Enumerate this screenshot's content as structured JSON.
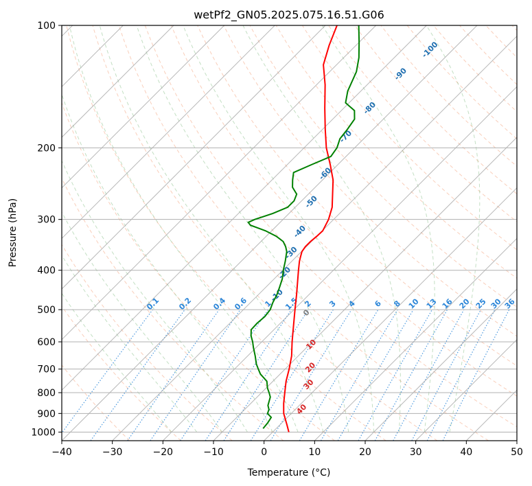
{
  "chart_data": {
    "type": "line",
    "title": "wetPf2_GN05.2025.075.16.51.G06",
    "xlabel": "Temperature (°C)",
    "ylabel": "Pressure (hPa)",
    "xlim": [
      -40,
      50
    ],
    "ylim": [
      1050,
      100
    ],
    "y_scale": "log",
    "skew": true,
    "x_ticks": [
      "−40",
      "−30",
      "−20",
      "−10",
      "0",
      "10",
      "20",
      "30",
      "40",
      "50"
    ],
    "y_ticks": [
      "100",
      "200",
      "300",
      "400",
      "500",
      "600",
      "700",
      "800",
      "900",
      "1000"
    ],
    "grid": true,
    "series": [
      {
        "color": "#ff0000",
        "points": [
          [
            1000,
            3.2
          ],
          [
            960,
            1.4
          ],
          [
            900,
            -1.5
          ],
          [
            850,
            -3.5
          ],
          [
            800,
            -5.4
          ],
          [
            750,
            -7.4
          ],
          [
            700,
            -9.2
          ],
          [
            650,
            -11.3
          ],
          [
            600,
            -14.0
          ],
          [
            560,
            -16.2
          ],
          [
            500,
            -19.8
          ],
          [
            460,
            -22.4
          ],
          [
            400,
            -26.9
          ],
          [
            380,
            -28.5
          ],
          [
            370,
            -29.2
          ],
          [
            360,
            -29.9
          ],
          [
            350,
            -30.2
          ],
          [
            340,
            -30.2
          ],
          [
            330,
            -30.0
          ],
          [
            320,
            -29.9
          ],
          [
            300,
            -31.0
          ],
          [
            280,
            -32.7
          ],
          [
            260,
            -35.2
          ],
          [
            240,
            -37.9
          ],
          [
            220,
            -41.5
          ],
          [
            200,
            -45.6
          ],
          [
            180,
            -49.5
          ],
          [
            160,
            -53.7
          ],
          [
            140,
            -58.3
          ],
          [
            125,
            -62.6
          ],
          [
            112,
            -65.3
          ],
          [
            100,
            -67.7
          ]
        ]
      },
      {
        "color": "#008000",
        "points": [
          [
            980,
            -2.6
          ],
          [
            950,
            -2.8
          ],
          [
            920,
            -3.2
          ],
          [
            900,
            -4.7
          ],
          [
            880,
            -5.2
          ],
          [
            860,
            -6.2
          ],
          [
            820,
            -7.4
          ],
          [
            800,
            -8.5
          ],
          [
            780,
            -9.7
          ],
          [
            750,
            -11.2
          ],
          [
            720,
            -13.9
          ],
          [
            700,
            -15.3
          ],
          [
            680,
            -16.7
          ],
          [
            650,
            -18.5
          ],
          [
            620,
            -20.5
          ],
          [
            600,
            -21.8
          ],
          [
            580,
            -23.3
          ],
          [
            560,
            -24.5
          ],
          [
            540,
            -24.6
          ],
          [
            520,
            -24.4
          ],
          [
            500,
            -24.7
          ],
          [
            480,
            -25.6
          ],
          [
            460,
            -26.3
          ],
          [
            440,
            -27.3
          ],
          [
            420,
            -28.4
          ],
          [
            400,
            -29.9
          ],
          [
            380,
            -31.3
          ],
          [
            360,
            -32.9
          ],
          [
            350,
            -34.1
          ],
          [
            340,
            -35.6
          ],
          [
            330,
            -38.0
          ],
          [
            320,
            -41.2
          ],
          [
            310,
            -45.3
          ],
          [
            305,
            -46.3
          ],
          [
            300,
            -45.6
          ],
          [
            290,
            -43.2
          ],
          [
            280,
            -41.5
          ],
          [
            270,
            -41.5
          ],
          [
            260,
            -42.3
          ],
          [
            250,
            -44.5
          ],
          [
            240,
            -45.9
          ],
          [
            230,
            -47.2
          ],
          [
            220,
            -45.2
          ],
          [
            210,
            -43.0
          ],
          [
            200,
            -43.5
          ],
          [
            190,
            -44.7
          ],
          [
            180,
            -45.1
          ],
          [
            170,
            -45.7
          ],
          [
            162,
            -47.4
          ],
          [
            155,
            -50.7
          ],
          [
            145,
            -52.6
          ],
          [
            130,
            -54.7
          ],
          [
            120,
            -57.0
          ],
          [
            110,
            -60.0
          ],
          [
            100,
            -63.4
          ]
        ]
      }
    ],
    "dry_adiabat_labels": [
      "-100",
      "-90",
      "-80",
      "-70",
      "-60",
      "-50",
      "-40",
      "-30",
      "-20",
      "-10",
      "0",
      "10",
      "20",
      "30",
      "40"
    ],
    "mixing_ratio_labels": [
      "0.1",
      "0.2",
      "0.4",
      "0.6",
      "1",
      "1.5",
      "2",
      "3",
      "4",
      "6",
      "8",
      "10",
      "13",
      "16",
      "20",
      "25",
      "30",
      "36"
    ]
  },
  "colors": {
    "temperature": "#ff0000",
    "dewpoint": "#008000",
    "isobar": "#b0b0b0",
    "isotherm": "#a0a0a0",
    "dry_adiabat": "#f4a582",
    "moist_adiabat": "#88c088",
    "mixing_ratio": "#2c86d8",
    "adiabat_label_cold": "#1f6fb0",
    "adiabat_label_zero": "#808080",
    "adiabat_label_warm": "#d62728"
  }
}
